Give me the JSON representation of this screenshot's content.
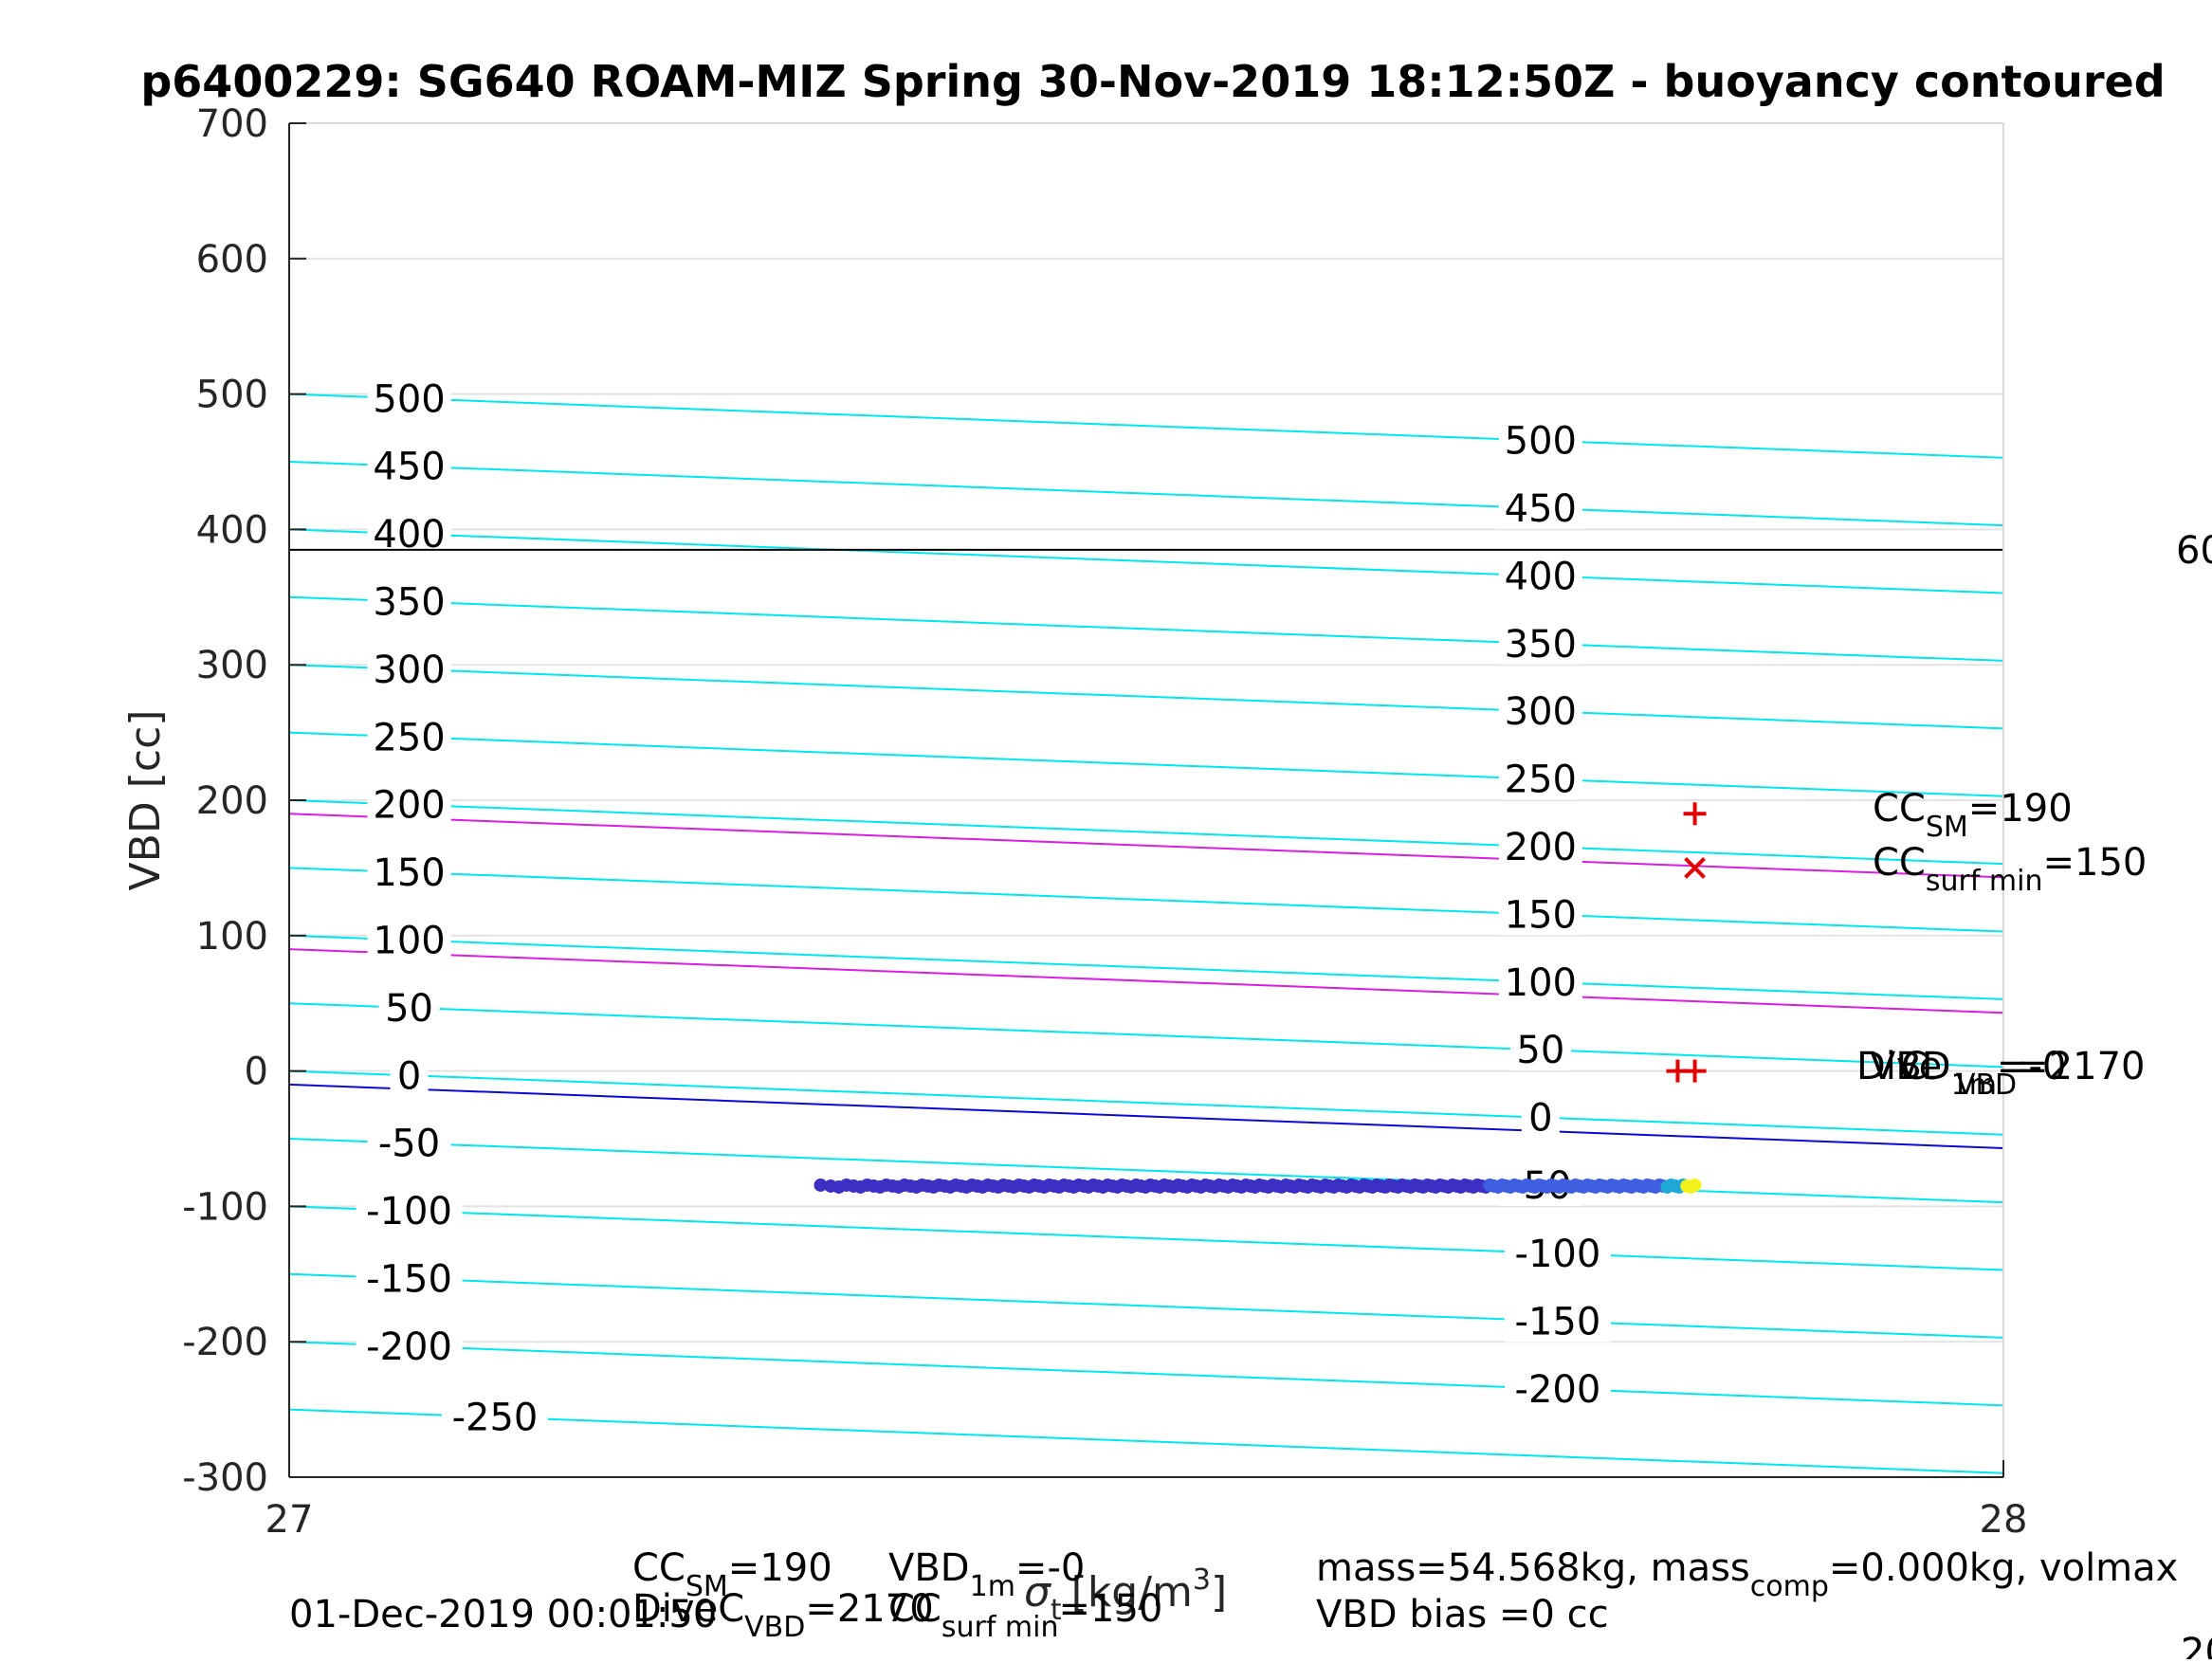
{
  "chart_data": {
    "type": "scatter",
    "title": "p6400229: SG640 ROAM-MIZ Spring 30-Nov-2019 18:12:50Z - buoyancy contoured",
    "xlabel": "",
    "xlabel_main": "[kg/m",
    "xlabel_sup": "3",
    "xlabel_close": "]",
    "ylabel": "VBD [cc]",
    "xlim": [
      27,
      28
    ],
    "ylim": [
      -300,
      700
    ],
    "grid": true,
    "x_ticks": [
      "27",
      "28"
    ],
    "y_ticks": [
      "-300",
      "-200",
      "-100",
      "0",
      "100",
      "200",
      "300",
      "400",
      "500",
      "600",
      "700"
    ],
    "horizontal_line": {
      "y": 385,
      "color": "#000000"
    },
    "buoyancy_contours": {
      "slope_cc_per_unit": -47,
      "cyan_levels": [
        500,
        450,
        400,
        350,
        300,
        250,
        200,
        150,
        100,
        50,
        0,
        -50,
        -100,
        -150,
        -200,
        -250
      ],
      "cyan_color": "#00e5ee",
      "magenta_intercepts": [
        190,
        90
      ],
      "magenta_color": "#d81fe0",
      "blue_intercept": -10,
      "blue_color": "#0a0ad4",
      "left_labels": [
        "500",
        "450",
        "400",
        "350",
        "300",
        "250",
        "200",
        "150",
        "100",
        "50",
        "0",
        "-50",
        "-100",
        "-150",
        "-200",
        "-250"
      ],
      "right_labels": [
        "500",
        "450",
        "400",
        "350",
        "300",
        "250",
        "200",
        "150",
        "100",
        "50",
        "0",
        "-50",
        "-100",
        "-150",
        "-200"
      ]
    },
    "series": [
      {
        "x_range": [
          27.31,
          27.82
        ],
        "y": -85,
        "count": 190,
        "colors": [
          "#3b2fc4",
          "#3d5fe0",
          "#1fa8d8",
          "#f2f21a"
        ]
      }
    ],
    "markers": [
      {
        "kind": "plus",
        "x": 27.82,
        "y": 190,
        "color": "#e00000"
      },
      {
        "kind": "cross",
        "x": 27.82,
        "y": 150,
        "color": "#e00000"
      },
      {
        "kind": "plus",
        "x": 27.81,
        "y": 0,
        "color": "#e00000"
      },
      {
        "kind": "plus",
        "x": 27.82,
        "y": 0,
        "color": "#e00000"
      }
    ],
    "annotations": {
      "cc_sm": {
        "main": "CC",
        "sub": "SM",
        "value": "=190"
      },
      "cc_surf": {
        "main": "CC",
        "sub": "surf min",
        "value": "=150"
      },
      "overlap_a": "Dive",
      "overlap_b": "VBD",
      "overlap_c": "C",
      "overlap_sub1": "1m",
      "overlap_sub2": "VBD",
      "overlap_val1": "=-0",
      "overlap_val2": "=2170",
      "edge_right_1": "60",
      "edge_right_2": "20"
    },
    "footer": {
      "date": "01-Dec-2019 00:01:50",
      "ccsm_main": "CC",
      "ccsm_sub": "SM",
      "ccsm_val": "=190",
      "vbd1m_main": "VBD",
      "vbd1m_sub": "1m",
      "vbd1m_val": "=-0",
      "dive_main": "DiveC",
      "dive_sub": "VBD",
      "dive_val": "=2170",
      "ccsurf_main": "CC",
      "ccsurf_sub": "surf min",
      "ccsurf_val": "=150",
      "sigma": "σ",
      "sigma_sub": "t",
      "mass_line": "mass=54.568kg, mass",
      "mass_sub": "comp",
      "mass_tail": "=0.000kg, volmax",
      "bias_line": "VBD bias =0 cc"
    }
  }
}
